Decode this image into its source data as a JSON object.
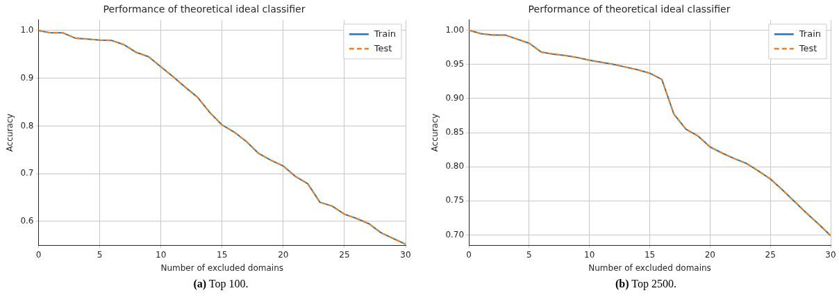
{
  "chart_data": [
    {
      "type": "line",
      "title": "Performance of theoretical ideal classifier",
      "xlabel": "Number of excluded domains",
      "ylabel": "Accuracy",
      "x": [
        0,
        1,
        2,
        3,
        4,
        5,
        6,
        7,
        8,
        9,
        10,
        11,
        12,
        13,
        14,
        15,
        16,
        17,
        18,
        19,
        20,
        21,
        22,
        23,
        24,
        25,
        26,
        27,
        28,
        29,
        30
      ],
      "series": [
        {
          "name": "Train",
          "color": "#1f77b4",
          "line_style": "solid",
          "values": [
            1.0,
            0.995,
            0.995,
            0.984,
            0.982,
            0.98,
            0.979,
            0.97,
            0.954,
            0.945,
            0.924,
            0.903,
            0.881,
            0.86,
            0.828,
            0.802,
            0.787,
            0.767,
            0.742,
            0.728,
            0.716,
            0.694,
            0.679,
            0.64,
            0.632,
            0.615,
            0.606,
            0.595,
            0.576,
            0.564,
            0.552
          ]
        },
        {
          "name": "Test",
          "color": "#ff7f0e",
          "line_style": "dashed",
          "values": [
            1.0,
            0.995,
            0.995,
            0.984,
            0.982,
            0.98,
            0.979,
            0.97,
            0.954,
            0.945,
            0.924,
            0.903,
            0.881,
            0.86,
            0.828,
            0.802,
            0.787,
            0.767,
            0.742,
            0.728,
            0.716,
            0.694,
            0.679,
            0.64,
            0.632,
            0.615,
            0.606,
            0.595,
            0.576,
            0.564,
            0.552
          ]
        }
      ],
      "xlim": [
        0,
        30
      ],
      "xticks": [
        0,
        5,
        10,
        15,
        20,
        25,
        30
      ],
      "ylim": [
        0.55,
        1.022
      ],
      "yticks": [
        {
          "value": 0.6,
          "label": "0.6"
        },
        {
          "value": 0.7,
          "label": "0.7"
        },
        {
          "value": 0.8,
          "label": "0.8"
        },
        {
          "value": 0.9,
          "label": "0.9"
        },
        {
          "value": 1.0,
          "label": "1.0"
        }
      ],
      "grid": true,
      "legend": "top right",
      "marker": "none",
      "annotations": [
        "(a) Top 100."
      ]
    },
    {
      "type": "line",
      "title": "Performance of theoretical ideal classifier",
      "xlabel": "Number of excluded domains",
      "ylabel": "Accuracy",
      "x": [
        0,
        1,
        2,
        3,
        4,
        5,
        6,
        7,
        8,
        9,
        10,
        11,
        12,
        13,
        14,
        15,
        16,
        17,
        18,
        19,
        20,
        21,
        22,
        23,
        24,
        25,
        26,
        27,
        28,
        29,
        30
      ],
      "series": [
        {
          "name": "Train",
          "color": "#1f77b4",
          "line_style": "solid",
          "values": [
            1.0,
            0.995,
            0.993,
            0.993,
            0.987,
            0.981,
            0.968,
            0.965,
            0.963,
            0.96,
            0.956,
            0.953,
            0.95,
            0.946,
            0.942,
            0.937,
            0.928,
            0.877,
            0.855,
            0.845,
            0.829,
            0.82,
            0.812,
            0.805,
            0.794,
            0.782,
            0.766,
            0.749,
            0.732,
            0.716,
            0.699
          ]
        },
        {
          "name": "Test",
          "color": "#ff7f0e",
          "line_style": "dashed",
          "values": [
            1.0,
            0.995,
            0.993,
            0.993,
            0.987,
            0.981,
            0.968,
            0.965,
            0.963,
            0.96,
            0.956,
            0.953,
            0.95,
            0.946,
            0.942,
            0.937,
            0.928,
            0.877,
            0.855,
            0.845,
            0.829,
            0.82,
            0.812,
            0.805,
            0.794,
            0.782,
            0.766,
            0.749,
            0.732,
            0.716,
            0.699
          ]
        }
      ],
      "xlim": [
        0,
        30
      ],
      "xticks": [
        0,
        5,
        10,
        15,
        20,
        25,
        30
      ],
      "ylim": [
        0.685,
        1.015
      ],
      "yticks": [
        {
          "value": 0.7,
          "label": "0.70"
        },
        {
          "value": 0.75,
          "label": "0.75"
        },
        {
          "value": 0.8,
          "label": "0.80"
        },
        {
          "value": 0.85,
          "label": "0.85"
        },
        {
          "value": 0.9,
          "label": "0.90"
        },
        {
          "value": 0.95,
          "label": "0.95"
        },
        {
          "value": 1.0,
          "label": "1.00"
        }
      ],
      "grid": true,
      "legend": "top right",
      "marker": "none",
      "annotations": [
        "(b) Top 2500."
      ]
    }
  ]
}
